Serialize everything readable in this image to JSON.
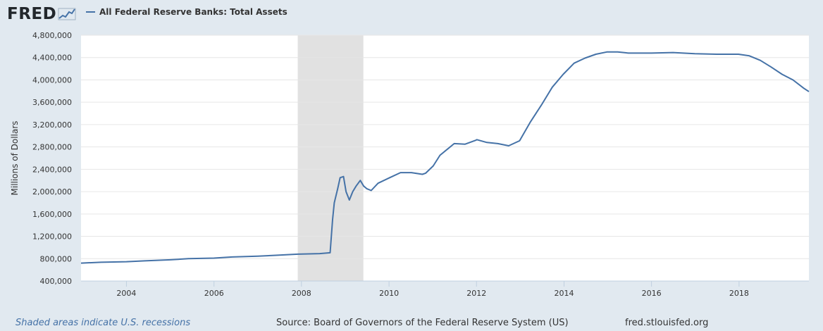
{
  "header": {
    "logo_text": "FRED",
    "legend_label": "All Federal Reserve Banks: Total Assets"
  },
  "footer": {
    "recession_note": "Shaded areas indicate U.S. recessions",
    "source": "Source: Board of Governors of the Federal Reserve System (US)",
    "site": "fred.stlouisfed.org"
  },
  "colors": {
    "background": "#e1e9f0",
    "plot_background": "#ffffff",
    "series_line": "#4572a7",
    "recession_shade": "#e1e1e1",
    "grid": "#e6e6e6"
  },
  "chart_data": {
    "type": "line",
    "title": "",
    "xlabel": "",
    "ylabel": "Millions of Dollars",
    "xlim": [
      "2002-12-18",
      "2019-08-07"
    ],
    "ylim": [
      400000,
      4800000
    ],
    "yticks": [
      400000,
      800000,
      1200000,
      1600000,
      2000000,
      2400000,
      2800000,
      3200000,
      3600000,
      4000000,
      4400000,
      4800000
    ],
    "ytick_labels": [
      "400,000",
      "800,000",
      "1,200,000",
      "1,600,000",
      "2,000,000",
      "2,400,000",
      "2,800,000",
      "3,200,000",
      "3,600,000",
      "4,000,000",
      "4,400,000",
      "4,800,000"
    ],
    "xticks": [
      "2004-01-01",
      "2006-01-01",
      "2008-01-01",
      "2010-01-01",
      "2012-01-01",
      "2014-01-01",
      "2016-01-01",
      "2018-01-01"
    ],
    "xtick_labels": [
      "2004",
      "2006",
      "2008",
      "2010",
      "2012",
      "2014",
      "2016",
      "2018"
    ],
    "grid": "horizontal",
    "legend": "top-left",
    "recessions": [
      {
        "start": "2007-12-01",
        "end": "2009-06-01"
      }
    ],
    "series": [
      {
        "name": "All Federal Reserve Banks: Total Assets",
        "x": [
          "2002-12-18",
          "2003-06-01",
          "2004-01-01",
          "2004-06-01",
          "2005-01-01",
          "2005-06-01",
          "2006-01-01",
          "2006-06-01",
          "2007-01-01",
          "2007-06-01",
          "2007-12-01",
          "2008-06-01",
          "2008-08-27",
          "2008-09-17",
          "2008-10-01",
          "2008-10-29",
          "2008-11-19",
          "2008-12-17",
          "2009-01-07",
          "2009-02-04",
          "2009-03-04",
          "2009-04-01",
          "2009-05-06",
          "2009-06-03",
          "2009-07-01",
          "2009-08-05",
          "2009-10-01",
          "2010-01-06",
          "2010-04-07",
          "2010-07-07",
          "2010-10-06",
          "2010-11-03",
          "2011-01-05",
          "2011-03-02",
          "2011-06-29",
          "2011-09-28",
          "2011-12-28",
          "2012-01-04",
          "2012-03-28",
          "2012-06-27",
          "2012-09-26",
          "2012-12-26",
          "2013-03-27",
          "2013-06-26",
          "2013-09-25",
          "2013-12-25",
          "2014-03-26",
          "2014-06-25",
          "2014-09-24",
          "2014-12-24",
          "2015-03-25",
          "2015-06-24",
          "2015-12-30",
          "2016-06-29",
          "2016-12-28",
          "2017-06-28",
          "2017-12-27",
          "2018-03-28",
          "2018-06-27",
          "2018-09-26",
          "2018-12-26",
          "2019-03-27",
          "2019-06-26",
          "2019-08-07"
        ],
        "y": [
          720000,
          735000,
          745000,
          760000,
          780000,
          800000,
          810000,
          830000,
          845000,
          860000,
          880000,
          890000,
          905000,
          1500000,
          1800000,
          2050000,
          2250000,
          2270000,
          2000000,
          1850000,
          2000000,
          2100000,
          2200000,
          2100000,
          2050000,
          2020000,
          2150000,
          2250000,
          2340000,
          2340000,
          2310000,
          2330000,
          2460000,
          2650000,
          2860000,
          2850000,
          2920000,
          2930000,
          2880000,
          2860000,
          2820000,
          2910000,
          3250000,
          3550000,
          3870000,
          4100000,
          4300000,
          4390000,
          4460000,
          4500000,
          4500000,
          4480000,
          4480000,
          4490000,
          4470000,
          4460000,
          4460000,
          4430000,
          4350000,
          4230000,
          4100000,
          4000000,
          3850000,
          3790000
        ]
      }
    ]
  }
}
